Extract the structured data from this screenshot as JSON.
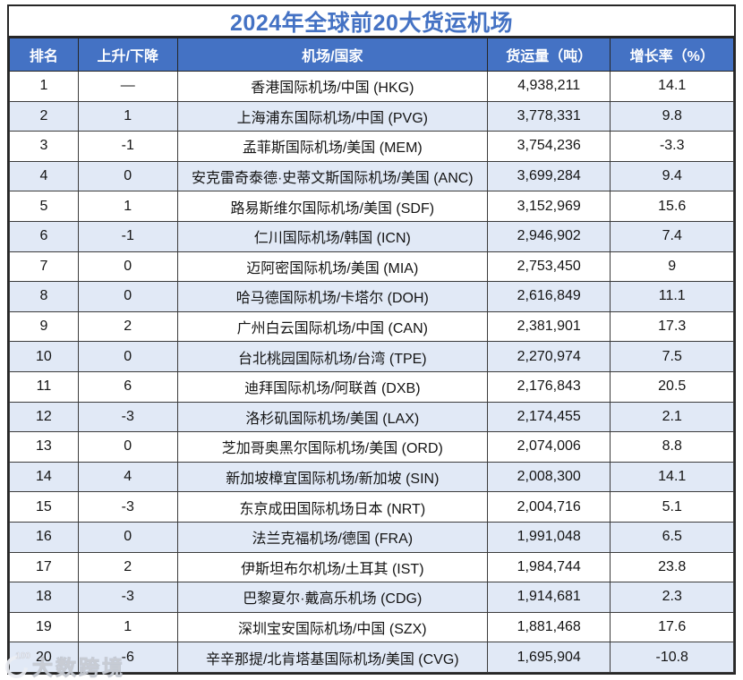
{
  "chart_data": {
    "type": "table",
    "title": "2024年全球前20大货运机场",
    "columns": [
      "排名",
      "上升/下降",
      "机场/国家",
      "货运量（吨）",
      "增长率（%）"
    ],
    "rows": [
      [
        "1",
        "—",
        "香港国际机场/中国 (HKG)",
        "4,938,211",
        "14.1"
      ],
      [
        "2",
        "1",
        "上海浦东国际机场/中国 (PVG)",
        "3,778,331",
        "9.8"
      ],
      [
        "3",
        "-1",
        "孟菲斯国际机场/美国 (MEM)",
        "3,754,236",
        "-3.3"
      ],
      [
        "4",
        "0",
        "安克雷奇泰德·史蒂文斯国际机场/美国 (ANC)",
        "3,699,284",
        "9.4"
      ],
      [
        "5",
        "1",
        "路易斯维尔国际机场/美国 (SDF)",
        "3,152,969",
        "15.6"
      ],
      [
        "6",
        "-1",
        "仁川国际机场/韩国 (ICN)",
        "2,946,902",
        "7.4"
      ],
      [
        "7",
        "0",
        "迈阿密国际机场/美国 (MIA)",
        "2,753,450",
        "9"
      ],
      [
        "8",
        "0",
        "哈马德国际机场/卡塔尔 (DOH)",
        "2,616,849",
        "11.1"
      ],
      [
        "9",
        "2",
        "广州白云国际机场/中国 (CAN)",
        "2,381,901",
        "17.3"
      ],
      [
        "10",
        "0",
        "台北桃园国际机场/台湾 (TPE)",
        "2,270,974",
        "7.5"
      ],
      [
        "11",
        "6",
        "迪拜国际机场/阿联酋 (DXB)",
        "2,176,843",
        "20.5"
      ],
      [
        "12",
        "-3",
        "洛杉矶国际机场/美国 (LAX)",
        "2,174,455",
        "2.1"
      ],
      [
        "13",
        "0",
        "芝加哥奥黑尔国际机场/美国 (ORD)",
        "2,074,006",
        "8.8"
      ],
      [
        "14",
        "4",
        "新加坡樟宜国际机场/新加坡 (SIN)",
        "2,008,300",
        "14.1"
      ],
      [
        "15",
        "-3",
        "东京成田国际机场日本 (NRT)",
        "2,004,716",
        "5.1"
      ],
      [
        "16",
        "0",
        "法兰克福机场/德国 (FRA)",
        "1,991,048",
        "6.5"
      ],
      [
        "17",
        "2",
        "伊斯坦布尔机场/土耳其 (IST)",
        "1,984,744",
        "23.8"
      ],
      [
        "18",
        "-3",
        "巴黎夏尔·戴高乐机场 (CDG)",
        "1,914,681",
        "2.3"
      ],
      [
        "19",
        "1",
        "深圳宝安国际机场/中国 (SZX)",
        "1,881,468",
        "17.6"
      ],
      [
        "20",
        "-6",
        "辛辛那提/北肯塔基国际机场/美国 (CVG)",
        "1,695,904",
        "-10.8"
      ]
    ],
    "layout": {
      "header_style": "white-bold-on-blue",
      "zebra_striping": true,
      "all_cells_centered": true
    }
  },
  "watermark": {
    "text": "大数跨境",
    "logo_text": "100"
  },
  "colors": {
    "accent_blue": "#4472C4",
    "stripe_blue": "#E1E9F6",
    "border_dark": "#262626",
    "cell_text": "#141414",
    "header_text": "#FFFFFF"
  }
}
